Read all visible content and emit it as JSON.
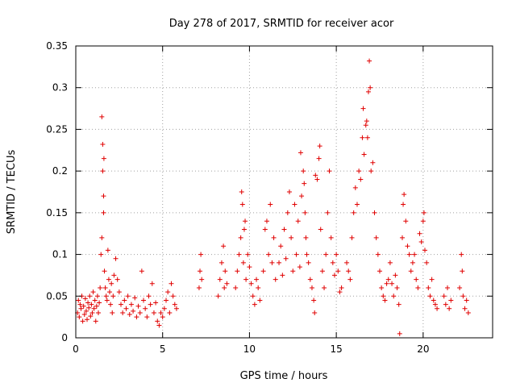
{
  "chart_data": {
    "type": "scatter",
    "title": "Day 278 of 2017, SRMTID for receiver acor",
    "xlabel": "GPS time / hours",
    "ylabel": "SRMTID / TECUs",
    "xlim": [
      0,
      24
    ],
    "ylim": [
      0,
      0.35
    ],
    "xticks": [
      0,
      5,
      10,
      15,
      20
    ],
    "yticks": [
      0,
      0.05,
      0.1,
      0.15,
      0.2,
      0.25,
      0.3,
      0.35
    ],
    "xtick_labels": [
      "0",
      "5",
      "10",
      "15",
      "20"
    ],
    "ytick_labels": [
      "0",
      "0.05",
      "0.1",
      "0.15",
      "0.2",
      "0.25",
      "0.3",
      "0.35"
    ],
    "grid": true,
    "marker": "plus",
    "color": "#e00000",
    "series": [
      {
        "name": "SRMTID",
        "points": [
          [
            0.1,
            0.03
          ],
          [
            0.15,
            0.045
          ],
          [
            0.2,
            0.025
          ],
          [
            0.25,
            0.04
          ],
          [
            0.3,
            0.035
          ],
          [
            0.35,
            0.05
          ],
          [
            0.4,
            0.02
          ],
          [
            0.45,
            0.038
          ],
          [
            0.5,
            0.028
          ],
          [
            0.55,
            0.047
          ],
          [
            0.6,
            0.032
          ],
          [
            0.65,
            0.022
          ],
          [
            0.7,
            0.042
          ],
          [
            0.75,
            0.036
          ],
          [
            0.8,
            0.05
          ],
          [
            0.85,
            0.026
          ],
          [
            0.9,
            0.04
          ],
          [
            0.95,
            0.03
          ],
          [
            1.0,
            0.055
          ],
          [
            1.05,
            0.035
          ],
          [
            1.1,
            0.045
          ],
          [
            1.15,
            0.02
          ],
          [
            1.2,
            0.038
          ],
          [
            1.25,
            0.05
          ],
          [
            1.3,
            0.03
          ],
          [
            1.35,
            0.042
          ],
          [
            1.4,
            0.06
          ],
          [
            1.45,
            0.1
          ],
          [
            1.5,
            0.12
          ],
          [
            1.5,
            0.265
          ],
          [
            1.55,
            0.232
          ],
          [
            1.55,
            0.2
          ],
          [
            1.6,
            0.17
          ],
          [
            1.6,
            0.15
          ],
          [
            1.62,
            0.215
          ],
          [
            1.65,
            0.08
          ],
          [
            1.7,
            0.06
          ],
          [
            1.75,
            0.05
          ],
          [
            1.8,
            0.045
          ],
          [
            1.85,
            0.105
          ],
          [
            1.9,
            0.07
          ],
          [
            1.95,
            0.055
          ],
          [
            2.0,
            0.04
          ],
          [
            2.05,
            0.065
          ],
          [
            2.1,
            0.03
          ],
          [
            2.15,
            0.05
          ],
          [
            2.2,
            0.075
          ],
          [
            2.3,
            0.095
          ],
          [
            2.4,
            0.07
          ],
          [
            2.5,
            0.055
          ],
          [
            2.6,
            0.04
          ],
          [
            2.7,
            0.03
          ],
          [
            2.8,
            0.045
          ],
          [
            2.9,
            0.035
          ],
          [
            3.0,
            0.05
          ],
          [
            3.1,
            0.028
          ],
          [
            3.2,
            0.04
          ],
          [
            3.3,
            0.032
          ],
          [
            3.4,
            0.048
          ],
          [
            3.5,
            0.025
          ],
          [
            3.6,
            0.038
          ],
          [
            3.7,
            0.03
          ],
          [
            3.8,
            0.08
          ],
          [
            3.9,
            0.045
          ],
          [
            4.0,
            0.035
          ],
          [
            4.1,
            0.025
          ],
          [
            4.2,
            0.05
          ],
          [
            4.3,
            0.04
          ],
          [
            4.4,
            0.065
          ],
          [
            4.5,
            0.03
          ],
          [
            4.6,
            0.042
          ],
          [
            4.7,
            0.02
          ],
          [
            4.8,
            0.015
          ],
          [
            4.9,
            0.03
          ],
          [
            5.0,
            0.025
          ],
          [
            5.1,
            0.035
          ],
          [
            5.2,
            0.045
          ],
          [
            5.3,
            0.055
          ],
          [
            5.4,
            0.03
          ],
          [
            5.5,
            0.065
          ],
          [
            5.6,
            0.05
          ],
          [
            5.7,
            0.04
          ],
          [
            5.8,
            0.035
          ],
          [
            7.1,
            0.06
          ],
          [
            7.15,
            0.08
          ],
          [
            7.2,
            0.1
          ],
          [
            7.25,
            0.07
          ],
          [
            8.2,
            0.05
          ],
          [
            8.3,
            0.07
          ],
          [
            8.4,
            0.09
          ],
          [
            8.5,
            0.11
          ],
          [
            8.55,
            0.06
          ],
          [
            8.6,
            0.08
          ],
          [
            8.7,
            0.065
          ],
          [
            9.2,
            0.06
          ],
          [
            9.3,
            0.08
          ],
          [
            9.4,
            0.1
          ],
          [
            9.5,
            0.12
          ],
          [
            9.55,
            0.175
          ],
          [
            9.6,
            0.16
          ],
          [
            9.65,
            0.09
          ],
          [
            9.7,
            0.13
          ],
          [
            9.75,
            0.14
          ],
          [
            9.8,
            0.07
          ],
          [
            9.9,
            0.1
          ],
          [
            10.0,
            0.085
          ],
          [
            10.1,
            0.065
          ],
          [
            10.2,
            0.05
          ],
          [
            10.3,
            0.04
          ],
          [
            10.4,
            0.07
          ],
          [
            10.5,
            0.06
          ],
          [
            10.6,
            0.045
          ],
          [
            10.8,
            0.08
          ],
          [
            10.9,
            0.13
          ],
          [
            11.0,
            0.14
          ],
          [
            11.1,
            0.1
          ],
          [
            11.2,
            0.16
          ],
          [
            11.3,
            0.09
          ],
          [
            11.4,
            0.12
          ],
          [
            11.5,
            0.07
          ],
          [
            11.7,
            0.09
          ],
          [
            11.8,
            0.11
          ],
          [
            11.9,
            0.075
          ],
          [
            12.0,
            0.13
          ],
          [
            12.1,
            0.095
          ],
          [
            12.2,
            0.15
          ],
          [
            12.3,
            0.175
          ],
          [
            12.4,
            0.12
          ],
          [
            12.5,
            0.08
          ],
          [
            12.6,
            0.16
          ],
          [
            12.7,
            0.1
          ],
          [
            12.8,
            0.14
          ],
          [
            12.9,
            0.085
          ],
          [
            12.95,
            0.222
          ],
          [
            13.0,
            0.17
          ],
          [
            13.1,
            0.2
          ],
          [
            13.15,
            0.185
          ],
          [
            13.2,
            0.15
          ],
          [
            13.25,
            0.12
          ],
          [
            13.3,
            0.1
          ],
          [
            13.4,
            0.09
          ],
          [
            13.5,
            0.07
          ],
          [
            13.6,
            0.06
          ],
          [
            13.7,
            0.045
          ],
          [
            13.75,
            0.03
          ],
          [
            13.8,
            0.195
          ],
          [
            13.9,
            0.19
          ],
          [
            14.0,
            0.215
          ],
          [
            14.05,
            0.23
          ],
          [
            14.1,
            0.13
          ],
          [
            14.2,
            0.08
          ],
          [
            14.3,
            0.06
          ],
          [
            14.4,
            0.1
          ],
          [
            14.5,
            0.15
          ],
          [
            14.6,
            0.2
          ],
          [
            14.7,
            0.12
          ],
          [
            14.8,
            0.09
          ],
          [
            14.9,
            0.075
          ],
          [
            15.0,
            0.1
          ],
          [
            15.1,
            0.08
          ],
          [
            15.2,
            0.055
          ],
          [
            15.3,
            0.06
          ],
          [
            15.6,
            0.09
          ],
          [
            15.7,
            0.08
          ],
          [
            15.8,
            0.07
          ],
          [
            15.9,
            0.12
          ],
          [
            16.0,
            0.15
          ],
          [
            16.1,
            0.18
          ],
          [
            16.2,
            0.16
          ],
          [
            16.3,
            0.2
          ],
          [
            16.4,
            0.19
          ],
          [
            16.5,
            0.24
          ],
          [
            16.55,
            0.275
          ],
          [
            16.6,
            0.22
          ],
          [
            16.7,
            0.255
          ],
          [
            16.75,
            0.26
          ],
          [
            16.8,
            0.24
          ],
          [
            16.85,
            0.295
          ],
          [
            16.9,
            0.332
          ],
          [
            16.95,
            0.3
          ],
          [
            17.0,
            0.2
          ],
          [
            17.1,
            0.21
          ],
          [
            17.2,
            0.15
          ],
          [
            17.3,
            0.12
          ],
          [
            17.4,
            0.1
          ],
          [
            17.5,
            0.08
          ],
          [
            17.6,
            0.06
          ],
          [
            17.7,
            0.05
          ],
          [
            17.8,
            0.045
          ],
          [
            17.9,
            0.065
          ],
          [
            18.0,
            0.07
          ],
          [
            18.1,
            0.09
          ],
          [
            18.2,
            0.065
          ],
          [
            18.3,
            0.05
          ],
          [
            18.4,
            0.075
          ],
          [
            18.5,
            0.06
          ],
          [
            18.6,
            0.04
          ],
          [
            18.65,
            0.005
          ],
          [
            18.8,
            0.12
          ],
          [
            18.85,
            0.16
          ],
          [
            18.9,
            0.172
          ],
          [
            19.0,
            0.14
          ],
          [
            19.1,
            0.11
          ],
          [
            19.2,
            0.1
          ],
          [
            19.3,
            0.08
          ],
          [
            19.4,
            0.09
          ],
          [
            19.5,
            0.1
          ],
          [
            19.6,
            0.07
          ],
          [
            19.7,
            0.06
          ],
          [
            19.8,
            0.125
          ],
          [
            19.9,
            0.115
          ],
          [
            20.0,
            0.14
          ],
          [
            20.05,
            0.15
          ],
          [
            20.1,
            0.105
          ],
          [
            20.2,
            0.09
          ],
          [
            20.3,
            0.06
          ],
          [
            20.4,
            0.05
          ],
          [
            20.5,
            0.07
          ],
          [
            20.6,
            0.045
          ],
          [
            20.7,
            0.04
          ],
          [
            20.8,
            0.035
          ],
          [
            21.2,
            0.05
          ],
          [
            21.3,
            0.04
          ],
          [
            21.4,
            0.06
          ],
          [
            21.5,
            0.035
          ],
          [
            21.6,
            0.045
          ],
          [
            22.1,
            0.06
          ],
          [
            22.2,
            0.1
          ],
          [
            22.25,
            0.08
          ],
          [
            22.3,
            0.05
          ],
          [
            22.4,
            0.035
          ],
          [
            22.5,
            0.045
          ],
          [
            22.6,
            0.03
          ]
        ]
      }
    ]
  }
}
